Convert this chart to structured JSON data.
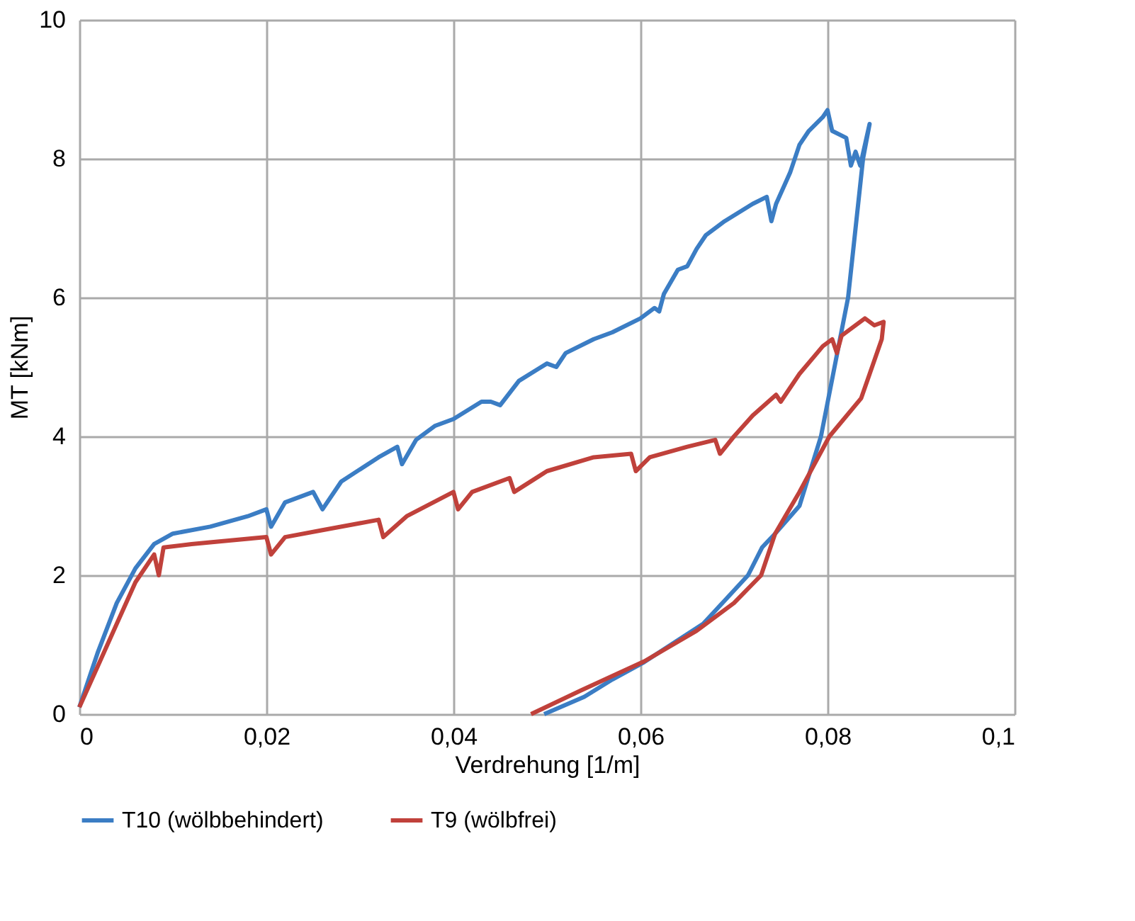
{
  "chart_data": {
    "type": "line",
    "xlabel": "Verdrehung [1/m]",
    "ylabel": "MT [kNm]",
    "xlim": [
      0,
      0.1
    ],
    "ylim": [
      0,
      10
    ],
    "xticks": [
      0,
      {
        "value": 0.02,
        "label": "0,02"
      },
      {
        "value": 0.04,
        "label": "0,04"
      },
      {
        "value": 0.06,
        "label": "0,06"
      },
      {
        "value": 0.08,
        "label": "0,08"
      },
      {
        "value": 0.1,
        "label": "0,1"
      }
    ],
    "yticks": [
      0,
      2,
      4,
      6,
      8,
      10
    ],
    "grid": true,
    "legend": "bottom",
    "marker": "none",
    "line_style": "solid",
    "series": [
      {
        "name": "T10 (wölbbehindert)",
        "color": "#3b7dc4",
        "x": [
          0,
          0.002,
          0.004,
          0.006,
          0.008,
          0.01,
          0.014,
          0.018,
          0.02,
          0.0205,
          0.022,
          0.025,
          0.026,
          0.028,
          0.032,
          0.034,
          0.0345,
          0.036,
          0.038,
          0.04,
          0.043,
          0.044,
          0.045,
          0.047,
          0.05,
          0.051,
          0.052,
          0.055,
          0.057,
          0.06,
          0.0615,
          0.062,
          0.0625,
          0.064,
          0.065,
          0.066,
          0.067,
          0.069,
          0.072,
          0.0735,
          0.074,
          0.0745,
          0.076,
          0.077,
          0.078,
          0.0795,
          0.08,
          0.0805,
          0.082,
          0.0825,
          0.083,
          0.0835,
          0.084,
          0.0845,
          0.0838,
          0.0822,
          0.0793,
          0.077,
          0.0744,
          0.073,
          0.0715,
          0.0667,
          0.0604,
          0.057,
          0.054,
          0.0497
        ],
        "values": [
          0.1,
          0.9,
          1.6,
          2.1,
          2.45,
          2.6,
          2.7,
          2.85,
          2.95,
          2.7,
          3.05,
          3.2,
          2.95,
          3.35,
          3.7,
          3.85,
          3.6,
          3.95,
          4.15,
          4.25,
          4.5,
          4.5,
          4.45,
          4.8,
          5.05,
          5.0,
          5.2,
          5.4,
          5.5,
          5.7,
          5.85,
          5.8,
          6.05,
          6.4,
          6.45,
          6.7,
          6.9,
          7.1,
          7.35,
          7.45,
          7.1,
          7.35,
          7.8,
          8.2,
          8.4,
          8.6,
          8.7,
          8.4,
          8.3,
          7.9,
          8.1,
          7.9,
          8.2,
          8.5,
          8.0,
          6.0,
          4.0,
          3.0,
          2.6,
          2.4,
          2.0,
          1.3,
          0.75,
          0.5,
          0.25,
          0
        ]
      },
      {
        "name": "T9 (wölbfrei)",
        "color": "#c0413b",
        "x": [
          0,
          0.002,
          0.004,
          0.006,
          0.008,
          0.0085,
          0.009,
          0.012,
          0.016,
          0.02,
          0.0205,
          0.022,
          0.026,
          0.03,
          0.032,
          0.0325,
          0.035,
          0.04,
          0.0405,
          0.042,
          0.046,
          0.0465,
          0.05,
          0.055,
          0.059,
          0.0595,
          0.061,
          0.065,
          0.068,
          0.0685,
          0.07,
          0.072,
          0.0745,
          0.075,
          0.077,
          0.0795,
          0.0805,
          0.081,
          0.0815,
          0.083,
          0.084,
          0.085,
          0.086,
          0.0858,
          0.0836,
          0.0802,
          0.077,
          0.0744,
          0.0729,
          0.07,
          0.066,
          0.0604,
          0.0536,
          0.0483
        ],
        "values": [
          0.1,
          0.7,
          1.3,
          1.9,
          2.3,
          2.0,
          2.4,
          2.45,
          2.5,
          2.55,
          2.3,
          2.55,
          2.65,
          2.75,
          2.8,
          2.55,
          2.85,
          3.2,
          2.95,
          3.2,
          3.4,
          3.2,
          3.5,
          3.7,
          3.75,
          3.5,
          3.7,
          3.85,
          3.95,
          3.75,
          4.0,
          4.3,
          4.6,
          4.5,
          4.9,
          5.3,
          5.4,
          5.2,
          5.45,
          5.6,
          5.7,
          5.6,
          5.65,
          5.4,
          4.55,
          4.0,
          3.2,
          2.6,
          2.0,
          1.6,
          1.2,
          0.76,
          0.34,
          0
        ]
      }
    ]
  }
}
